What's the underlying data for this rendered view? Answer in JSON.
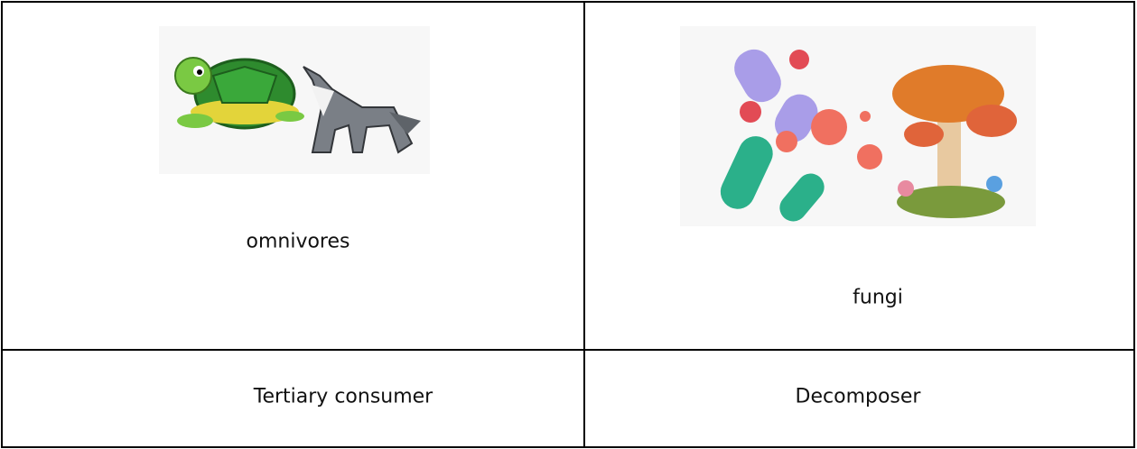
{
  "table": {
    "rows": [
      [
        "omnivores",
        "fungi"
      ],
      [
        "Tertiary consumer",
        "Decomposer"
      ]
    ]
  }
}
